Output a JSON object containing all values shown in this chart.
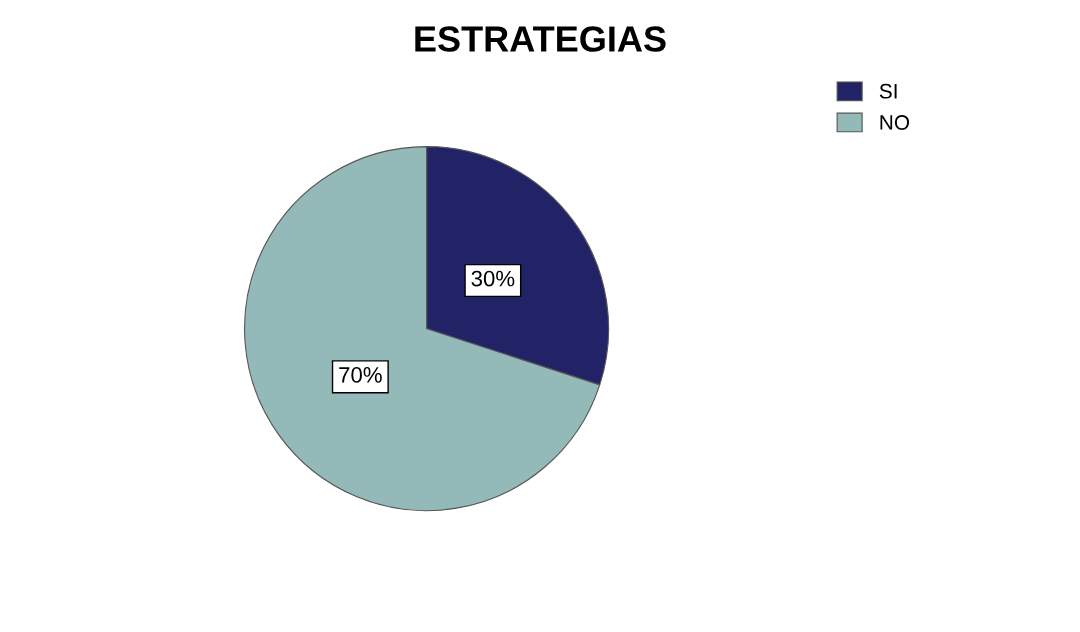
{
  "chart_data": {
    "type": "pie",
    "title": "ESTRATEGIAS",
    "categories": [
      "SI",
      "NO"
    ],
    "values": [
      30,
      70
    ],
    "colors": [
      "#222266",
      "#93b9b9"
    ],
    "value_labels": [
      "30%",
      "70%"
    ],
    "legend": "top right"
  }
}
